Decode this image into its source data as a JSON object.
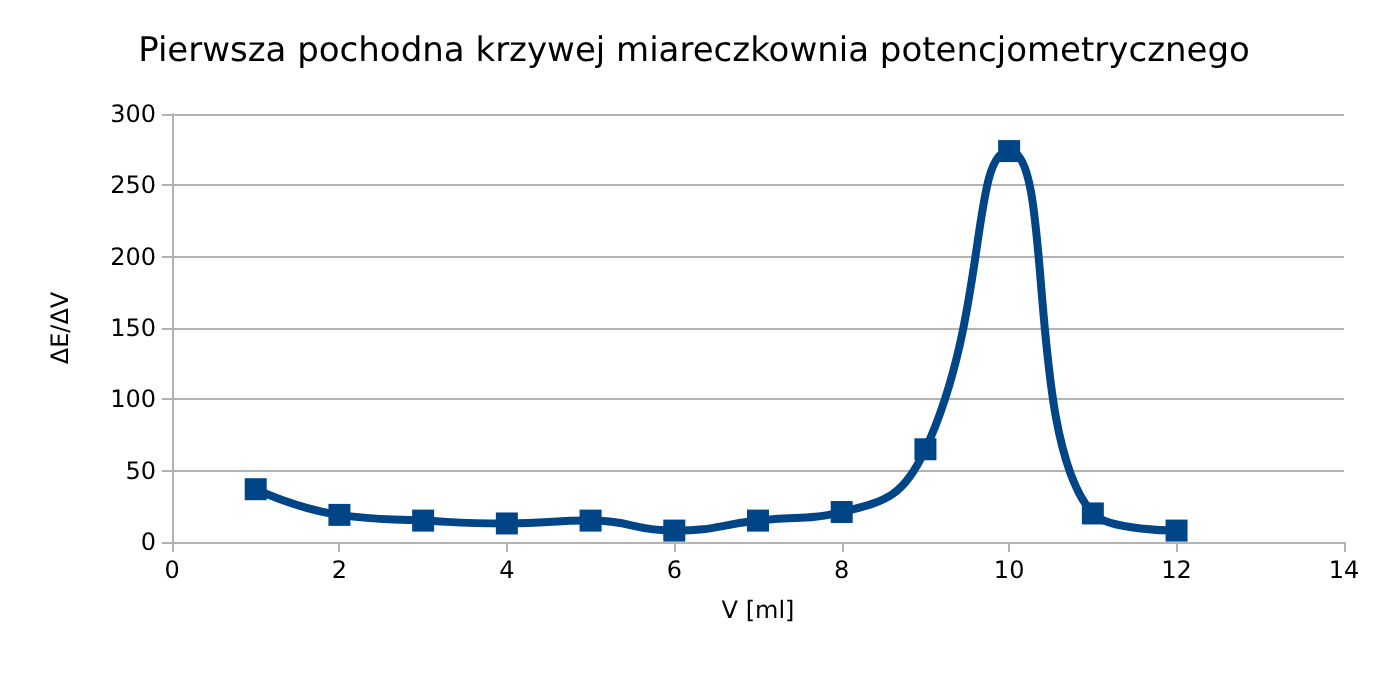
{
  "chart_data": {
    "type": "line",
    "title": "Pierwsza pochodna krzywej miareczkownia potencjometrycznego",
    "xlabel": "V [ml]",
    "ylabel": "ΔE/ΔV",
    "x": [
      1,
      2,
      3,
      4,
      5,
      6,
      7,
      8,
      9,
      10,
      11,
      12
    ],
    "series": [
      {
        "color": "#004586",
        "values": [
          37,
          19,
          15,
          13,
          15,
          8,
          15,
          21,
          65,
          274,
          20,
          8
        ]
      }
    ],
    "xlim": [
      0,
      14
    ],
    "xticks": [
      0,
      2,
      4,
      6,
      8,
      10,
      12,
      14
    ],
    "ylim": [
      0,
      300
    ],
    "yticks": [
      0,
      50,
      100,
      150,
      200,
      250,
      300
    ],
    "grid": "y",
    "marker": "square",
    "line_style": "solid"
  }
}
